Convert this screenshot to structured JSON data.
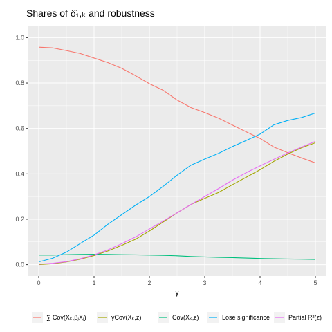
{
  "chart_data": {
    "type": "line",
    "title": "Shares of δ̂₁,ₖ and robustness",
    "xlabel": "γ",
    "ylabel": "",
    "xlim": [
      -0.2,
      5.2
    ],
    "ylim": [
      -0.05,
      1.05
    ],
    "x_ticks": [
      0,
      1,
      2,
      3,
      4,
      5
    ],
    "y_ticks": [
      0.0,
      0.2,
      0.4,
      0.6,
      0.8,
      1.0
    ],
    "x_tick_labels": [
      "0",
      "1",
      "2",
      "3",
      "4",
      "5"
    ],
    "y_tick_labels": [
      "0.0",
      "0.2",
      "0.4",
      "0.6",
      "0.8",
      "1.0"
    ],
    "grid": true,
    "legend_position": "bottom",
    "background": "#EBEBEB",
    "x": [
      0,
      0.25,
      0.5,
      0.75,
      1,
      1.25,
      1.5,
      1.75,
      2,
      2.25,
      2.5,
      2.75,
      3,
      3.25,
      3.5,
      3.75,
      4,
      4.25,
      4.5,
      4.75,
      5
    ],
    "series": [
      {
        "name": "∑ Cov(Xₖ,βⱼXⱼ)",
        "color": "#F8766D",
        "values": [
          0.958,
          0.955,
          0.943,
          0.93,
          0.91,
          0.89,
          0.865,
          0.832,
          0.797,
          0.768,
          0.725,
          0.692,
          0.67,
          0.645,
          0.615,
          0.585,
          0.556,
          0.518,
          0.493,
          0.47,
          0.448
        ]
      },
      {
        "name": "γCov(Xₖ,z)",
        "color": "#A3A500",
        "values": [
          0.0,
          0.004,
          0.012,
          0.024,
          0.04,
          0.06,
          0.085,
          0.112,
          0.148,
          0.188,
          0.228,
          0.265,
          0.292,
          0.318,
          0.352,
          0.385,
          0.418,
          0.455,
          0.487,
          0.515,
          0.537
        ]
      },
      {
        "name": "Cov(Xₖ,ε)",
        "color": "#00BF7D",
        "values": [
          0.042,
          0.042,
          0.044,
          0.045,
          0.046,
          0.045,
          0.044,
          0.043,
          0.042,
          0.041,
          0.039,
          0.036,
          0.034,
          0.032,
          0.031,
          0.029,
          0.027,
          0.026,
          0.025,
          0.024,
          0.023
        ]
      },
      {
        "name": "Lose significance",
        "color": "#00B0F6",
        "values": [
          0.012,
          0.028,
          0.055,
          0.093,
          0.13,
          0.178,
          0.22,
          0.262,
          0.3,
          0.345,
          0.394,
          0.438,
          0.465,
          0.49,
          0.52,
          0.547,
          0.575,
          0.616,
          0.635,
          0.648,
          0.668
        ]
      },
      {
        "name": "Partial R²(z)",
        "color": "#E76BF3",
        "values": [
          0.002,
          0.006,
          0.013,
          0.026,
          0.043,
          0.065,
          0.092,
          0.122,
          0.157,
          0.192,
          0.228,
          0.265,
          0.3,
          0.335,
          0.372,
          0.405,
          0.435,
          0.464,
          0.492,
          0.518,
          0.543
        ]
      }
    ]
  }
}
